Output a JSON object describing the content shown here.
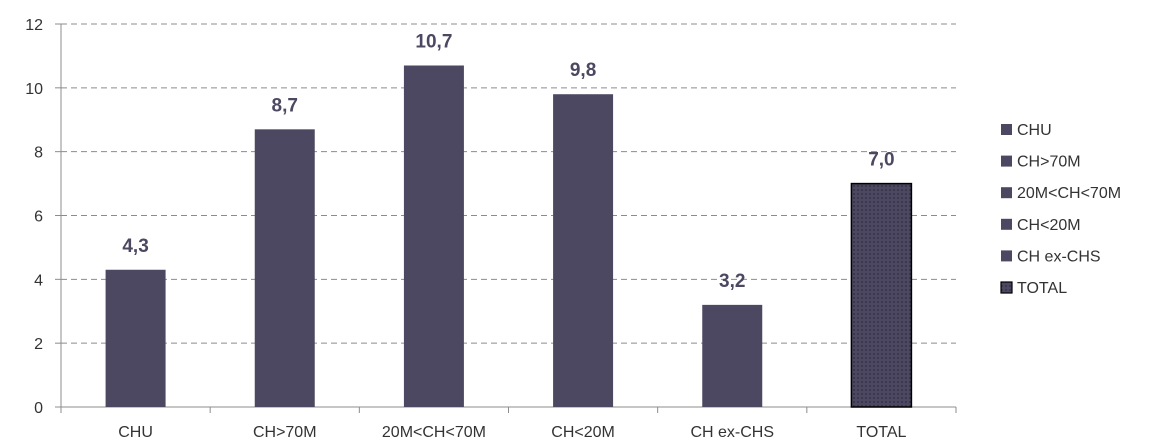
{
  "chart_data": {
    "type": "bar",
    "categories": [
      "CHU",
      "CH>70M",
      "20M<CH<70M",
      "CH<20M",
      "CH ex-CHS",
      "TOTAL"
    ],
    "values": [
      4.3,
      8.7,
      10.7,
      9.8,
      3.2,
      7.0
    ],
    "data_labels": [
      "4,3",
      "8,7",
      "10,7",
      "9,8",
      "3,2",
      "7,0"
    ],
    "y_ticks": [
      "0",
      "2",
      "4",
      "6",
      "8",
      "10",
      "12"
    ],
    "ylim": [
      0,
      12
    ],
    "grid": true,
    "legend_position": "right",
    "legend": [
      "CHU",
      "CH>70M",
      "20M<CH<70M",
      "CH<20M",
      "CH ex-CHS",
      "TOTAL"
    ],
    "colors": {
      "bar": "#4d4862",
      "total": "#4d4862",
      "label": "#4d4862",
      "grid": "#8c8c8c"
    }
  }
}
